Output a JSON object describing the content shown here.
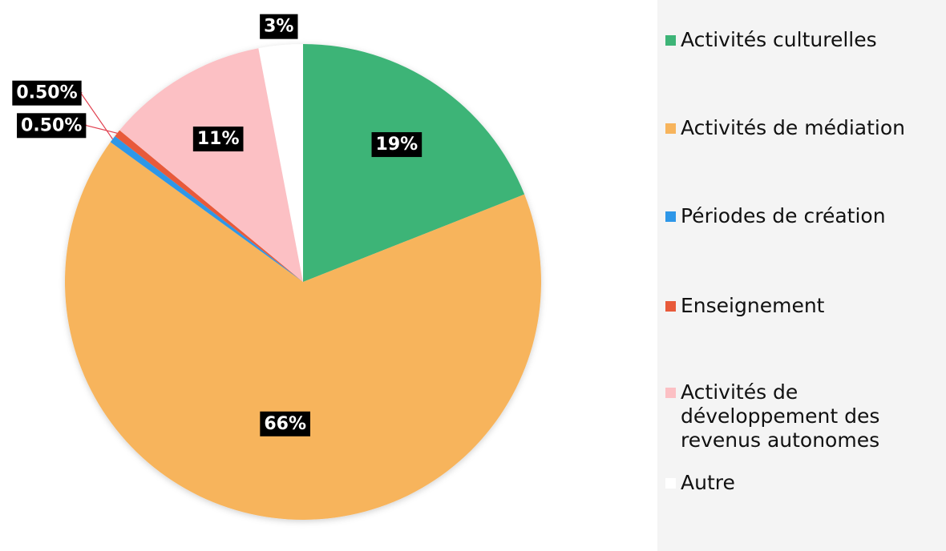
{
  "chart_data": {
    "type": "pie",
    "categories": [
      "Activités culturelles",
      "Activités de médiation",
      "Périodes de création",
      "Enseignement",
      "Activités de développement des revenus autonomes",
      "Autre"
    ],
    "values": [
      19,
      66,
      0.5,
      0.5,
      11,
      3
    ],
    "value_labels": [
      "19%",
      "66%",
      "0.50%",
      "0.50%",
      "11%",
      "3%"
    ],
    "colors": [
      "#3db477",
      "#f7b45c",
      "#2e97e8",
      "#e85a3a",
      "#fcc0c4",
      "#ffffff"
    ],
    "legend": "right"
  }
}
